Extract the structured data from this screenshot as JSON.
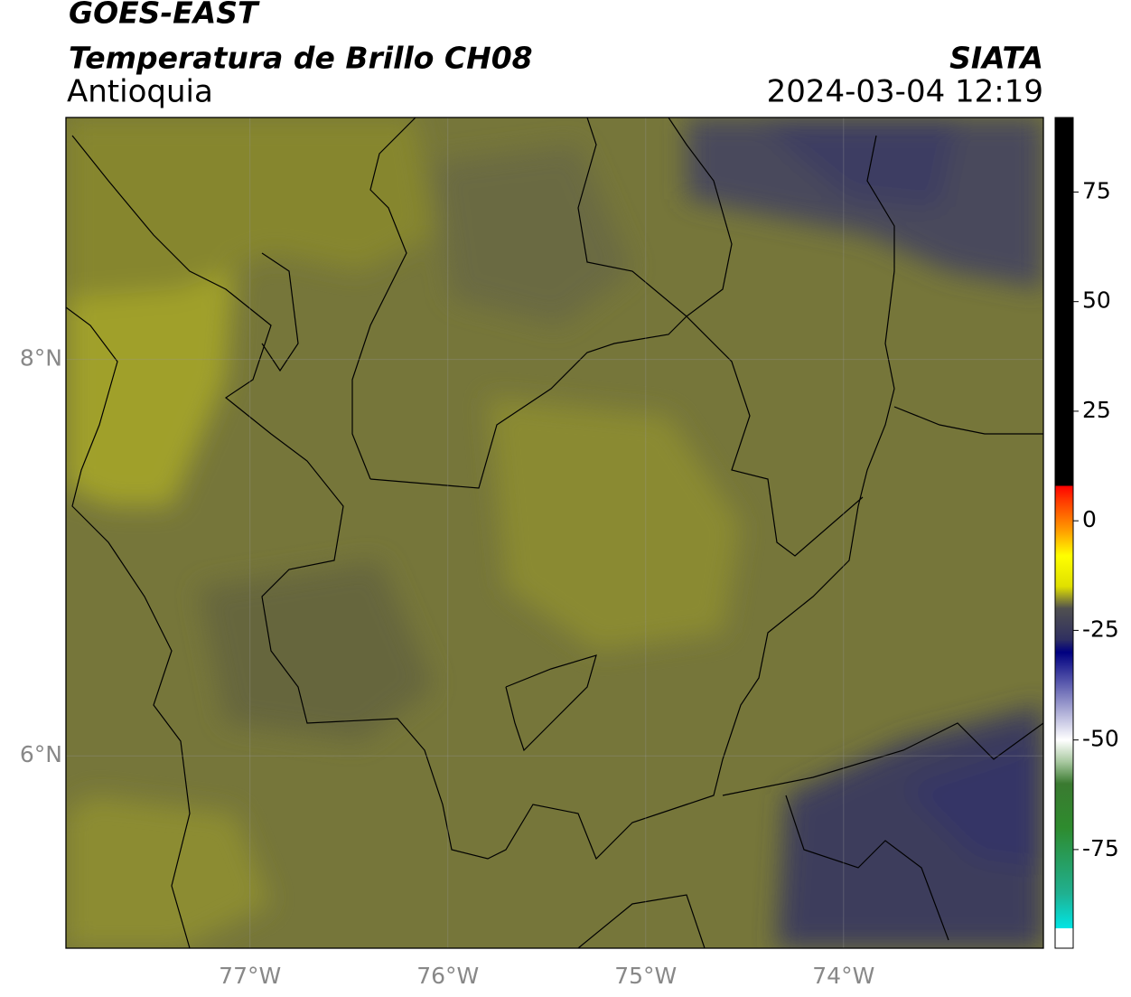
{
  "header": {
    "title": "GOES-EAST",
    "subtitle": "Temperatura de Brillo CH08",
    "region": "Antioquia",
    "agency": "SIATA",
    "datetime": "2024-03-04 12:19"
  },
  "map": {
    "xlim": [
      -77.93,
      -72.99
    ],
    "ylim": [
      5.03,
      9.22
    ],
    "grid": true,
    "xticks": [
      {
        "value": -77,
        "label": "77°W"
      },
      {
        "value": -76,
        "label": "76°W"
      },
      {
        "value": -75,
        "label": "75°W"
      },
      {
        "value": -74,
        "label": "74°W"
      }
    ],
    "yticks": [
      {
        "value": 8,
        "label": "8°N"
      },
      {
        "value": 6,
        "label": "6°N"
      }
    ]
  },
  "colorbar": {
    "lim": [
      -97.5,
      92
    ],
    "ticks": [
      75,
      50,
      25,
      0,
      -25,
      -50,
      -75
    ],
    "stops": [
      {
        "value": -97.5,
        "color": "#ffffff"
      },
      {
        "value": -93,
        "color": "#ffffff"
      },
      {
        "value": -93,
        "color": "#00e5e5"
      },
      {
        "value": -85,
        "color": "#20b090"
      },
      {
        "value": -70,
        "color": "#2e8b2e"
      },
      {
        "value": -60,
        "color": "#3a7a30"
      },
      {
        "value": -55,
        "color": "#a8c8a0"
      },
      {
        "value": -50,
        "color": "#ffffff"
      },
      {
        "value": -45,
        "color": "#c0c0e0"
      },
      {
        "value": -35,
        "color": "#4040a0"
      },
      {
        "value": -30,
        "color": "#000080"
      },
      {
        "value": -27,
        "color": "#303060"
      },
      {
        "value": -20,
        "color": "#505050"
      },
      {
        "value": -15,
        "color": "#e0e000"
      },
      {
        "value": -8,
        "color": "#ffff00"
      },
      {
        "value": -2,
        "color": "#ff9900"
      },
      {
        "value": 5,
        "color": "#ff3300"
      },
      {
        "value": 8,
        "color": "#ff0000"
      },
      {
        "value": 8,
        "color": "#000000"
      },
      {
        "value": 92,
        "color": "#000000"
      }
    ]
  }
}
